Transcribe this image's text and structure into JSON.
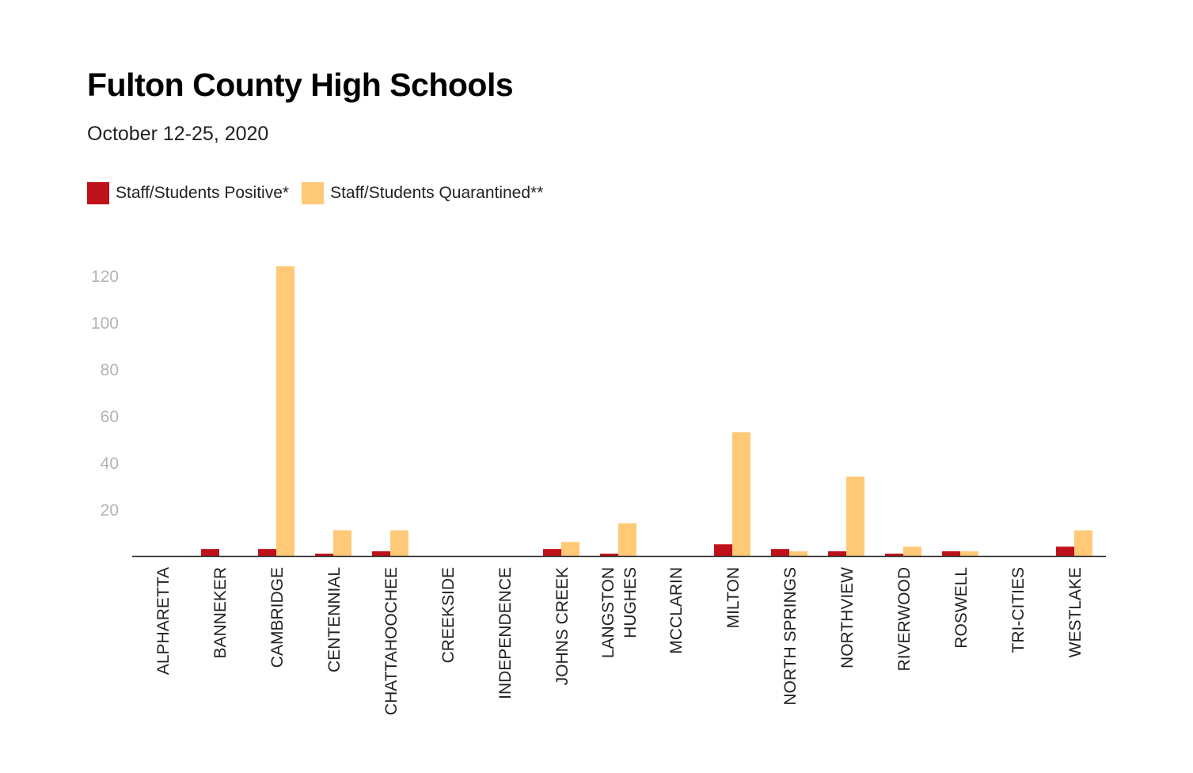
{
  "chart_data": {
    "type": "bar",
    "title": "Fulton County High Schools",
    "subtitle": "October 12-25, 2020",
    "legend_position": "top-left",
    "grid": false,
    "ylim": [
      0,
      120
    ],
    "y_ticks": [
      20,
      40,
      60,
      80,
      100,
      120
    ],
    "categories": [
      "ALPHARETTA",
      "BANNEKER",
      "CAMBRIDGE",
      "CENTENNIAL",
      "CHATTAHOOCHEE",
      "CREEKSIDE",
      "INDEPENDENCE",
      "JOHNS CREEK",
      "LANGSTON HUGHES",
      "MCCLARIN",
      "MILTON",
      "NORTH SPRINGS",
      "NORTHVIEW",
      "RIVERWOOD",
      "ROSWELL",
      "TRI-CITIES",
      "WESTLAKE"
    ],
    "category_lines": [
      [
        "ALPHARETTA"
      ],
      [
        "BANNEKER"
      ],
      [
        "CAMBRIDGE"
      ],
      [
        "CENTENNIAL"
      ],
      [
        "CHATTAHOOCHEE"
      ],
      [
        "CREEKSIDE"
      ],
      [
        "INDEPENDENCE"
      ],
      [
        "JOHNS CREEK"
      ],
      [
        "LANGSTON",
        "HUGHES"
      ],
      [
        "MCCLARIN"
      ],
      [
        "MILTON"
      ],
      [
        "NORTH SPRINGS"
      ],
      [
        "NORTHVIEW"
      ],
      [
        "RIVERWOOD"
      ],
      [
        "ROSWELL"
      ],
      [
        "TRI-CITIES"
      ],
      [
        "WESTLAKE"
      ]
    ],
    "series": [
      {
        "name": "Staff/Students Positive*",
        "color": "#bf1119",
        "values": [
          0,
          3,
          3,
          1,
          2,
          0,
          0,
          3,
          1,
          0,
          5,
          3,
          2,
          1,
          2,
          0,
          4
        ]
      },
      {
        "name": "Staff/Students Quarantined**",
        "color": "#ffc977",
        "values": [
          0,
          0,
          124,
          11,
          11,
          0,
          0,
          6,
          14,
          0,
          53,
          2,
          34,
          4,
          2,
          0,
          11
        ]
      }
    ]
  }
}
